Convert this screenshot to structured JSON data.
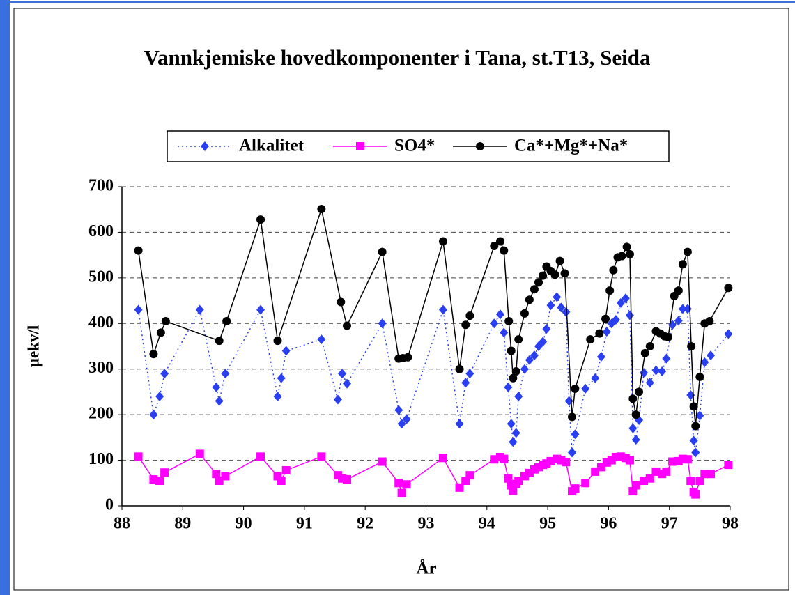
{
  "chart_data": {
    "type": "line",
    "title": "Vannkjemiske hovedkomponenter i Tana, st.T13, Seida",
    "xlabel": "År",
    "ylabel": "µekv/l",
    "xlim": [
      88,
      98
    ],
    "xticks": [
      88,
      89,
      90,
      91,
      92,
      93,
      94,
      95,
      96,
      97,
      98
    ],
    "ylim": [
      0,
      700
    ],
    "yticks": [
      0,
      100,
      200,
      300,
      400,
      500,
      600,
      700
    ],
    "grid": true,
    "legend": "top",
    "series": [
      {
        "name": "Alkalitet",
        "color": "#2a3ff0",
        "line_style": "dotted",
        "marker": "diamond",
        "x": [
          88.27,
          88.52,
          88.62,
          88.7,
          89.28,
          89.55,
          89.6,
          89.7,
          90.28,
          90.56,
          90.62,
          90.7,
          91.28,
          91.55,
          91.62,
          91.7,
          92.28,
          92.55,
          92.6,
          92.68,
          93.28,
          93.55,
          93.65,
          93.72,
          94.12,
          94.22,
          94.28,
          94.35,
          94.4,
          94.43,
          94.48,
          94.52,
          94.62,
          94.7,
          94.78,
          94.85,
          94.92,
          94.98,
          95.05,
          95.15,
          95.22,
          95.3,
          95.35,
          95.4,
          95.45,
          95.62,
          95.78,
          95.88,
          95.97,
          96.05,
          96.12,
          96.2,
          96.28,
          96.35,
          96.4,
          96.45,
          96.5,
          96.58,
          96.68,
          96.78,
          96.88,
          96.95,
          97.05,
          97.15,
          97.22,
          97.3,
          97.35,
          97.4,
          97.43,
          97.5,
          97.58,
          97.68,
          97.97
        ],
        "values": [
          430,
          200,
          240,
          290,
          430,
          260,
          230,
          290,
          430,
          240,
          280,
          340,
          365,
          233,
          290,
          268,
          400,
          210,
          180,
          190,
          430,
          180,
          270,
          290,
          400,
          420,
          380,
          260,
          180,
          140,
          160,
          240,
          300,
          320,
          330,
          350,
          360,
          388,
          440,
          458,
          435,
          425,
          230,
          117,
          157,
          257,
          280,
          327,
          382,
          400,
          408,
          445,
          455,
          418,
          170,
          145,
          188,
          292,
          270,
          297,
          295,
          323,
          397,
          406,
          432,
          432,
          243,
          143,
          117,
          198,
          315,
          330,
          377
        ]
      },
      {
        "name": "SO4*",
        "color": "#ff00ff",
        "line_style": "solid",
        "marker": "square",
        "x": [
          88.27,
          88.52,
          88.62,
          88.7,
          89.28,
          89.55,
          89.6,
          89.7,
          90.28,
          90.56,
          90.62,
          90.7,
          91.28,
          91.55,
          91.62,
          91.7,
          92.28,
          92.55,
          92.6,
          92.68,
          93.28,
          93.55,
          93.65,
          93.72,
          94.12,
          94.22,
          94.28,
          94.35,
          94.4,
          94.43,
          94.48,
          94.52,
          94.62,
          94.7,
          94.78,
          94.85,
          94.92,
          94.98,
          95.05,
          95.15,
          95.22,
          95.3,
          95.4,
          95.45,
          95.62,
          95.78,
          95.88,
          95.97,
          96.05,
          96.12,
          96.2,
          96.28,
          96.35,
          96.4,
          96.45,
          96.58,
          96.68,
          96.78,
          96.88,
          96.95,
          97.05,
          97.15,
          97.22,
          97.3,
          97.35,
          97.4,
          97.43,
          97.5,
          97.58,
          97.68,
          97.97
        ],
        "values": [
          108,
          58,
          55,
          73,
          114,
          70,
          55,
          65,
          108,
          65,
          55,
          78,
          108,
          67,
          60,
          58,
          97,
          50,
          28,
          47,
          105,
          40,
          55,
          67,
          102,
          107,
          103,
          60,
          45,
          33,
          48,
          55,
          65,
          72,
          80,
          85,
          90,
          93,
          98,
          103,
          100,
          96,
          32,
          38,
          50,
          75,
          85,
          95,
          100,
          107,
          108,
          105,
          100,
          32,
          45,
          55,
          60,
          75,
          70,
          75,
          97,
          98,
          103,
          102,
          55,
          30,
          25,
          55,
          70,
          70,
          90
        ]
      },
      {
        "name": "Ca*+Mg*+Na*",
        "color": "#000000",
        "line_style": "solid",
        "marker": "circle",
        "x": [
          88.27,
          88.52,
          88.64,
          88.72,
          89.6,
          89.72,
          90.28,
          90.56,
          91.28,
          91.6,
          91.7,
          92.28,
          92.55,
          92.62,
          92.7,
          93.28,
          93.55,
          93.65,
          93.72,
          94.12,
          94.22,
          94.28,
          94.36,
          94.4,
          94.43,
          94.48,
          94.52,
          94.62,
          94.7,
          94.78,
          94.85,
          94.92,
          94.98,
          95.05,
          95.12,
          95.2,
          95.28,
          95.4,
          95.45,
          95.7,
          95.85,
          95.95,
          96.02,
          96.08,
          96.15,
          96.22,
          96.3,
          96.35,
          96.4,
          96.45,
          96.5,
          96.6,
          96.68,
          96.78,
          96.85,
          96.92,
          96.98,
          97.08,
          97.15,
          97.22,
          97.3,
          97.36,
          97.4,
          97.43,
          97.5,
          97.58,
          97.66,
          97.97
        ],
        "values": [
          560,
          333,
          380,
          405,
          362,
          405,
          628,
          362,
          651,
          447,
          395,
          557,
          323,
          324,
          326,
          580,
          300,
          397,
          417,
          570,
          580,
          560,
          405,
          340,
          280,
          295,
          365,
          422,
          452,
          475,
          490,
          505,
          525,
          515,
          507,
          537,
          510,
          195,
          257,
          365,
          378,
          410,
          472,
          517,
          545,
          548,
          568,
          552,
          235,
          200,
          250,
          335,
          350,
          383,
          378,
          372,
          370,
          460,
          472,
          530,
          557,
          350,
          218,
          175,
          283,
          400,
          405,
          478
        ]
      }
    ]
  }
}
